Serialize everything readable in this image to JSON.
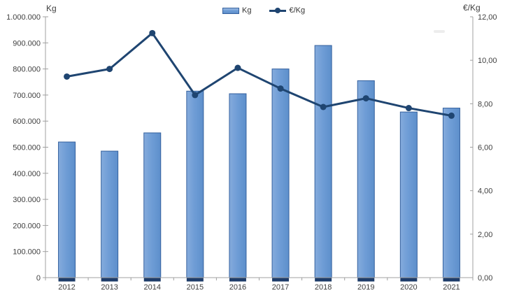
{
  "chart_data": {
    "type": "combo (bar + line, dual axis)",
    "categories": [
      "2012",
      "2013",
      "2014",
      "2015",
      "2016",
      "2017",
      "2018",
      "2019",
      "2020",
      "2021"
    ],
    "series": [
      {
        "name": "Kg",
        "type": "bar",
        "axis": "left",
        "values": [
          520000,
          485000,
          555000,
          715000,
          705000,
          800000,
          890000,
          755000,
          635000,
          650000
        ]
      },
      {
        "name": "€/Kg",
        "type": "line",
        "axis": "right",
        "values": [
          9.25,
          9.6,
          11.25,
          8.4,
          9.65,
          8.7,
          7.85,
          8.25,
          7.8,
          7.45
        ]
      }
    ],
    "left_axis": {
      "title": "Kg",
      "min": 0,
      "max": 1000000,
      "step": 100000,
      "tick_labels": [
        "1.000.000",
        "900.000",
        "800.000",
        "700.000",
        "600.000",
        "500.000",
        "400.000",
        "300.000",
        "200.000",
        "100.000",
        "0"
      ]
    },
    "right_axis": {
      "title": "€/Kg",
      "min": 0,
      "max": 12,
      "step": 2,
      "tick_labels": [
        "12,00",
        "10,00",
        "8,00",
        "6,00",
        "4,00",
        "2,00",
        "0,00"
      ]
    },
    "legend": {
      "position": "top-center",
      "items": [
        "Kg",
        "€/Kg"
      ]
    },
    "grid": "off",
    "colors": {
      "bar_fill": "#6f9dd6",
      "bar_fill_light": "#9dbce4",
      "bar_fill_dark": "#5d8fcb",
      "bar_border": "#35619e",
      "bar_base": "#1e3c69",
      "line": "#1f4571",
      "axis_line": "#a0a0a0",
      "text": "#3f3f3f",
      "background": "#ffffff"
    }
  }
}
